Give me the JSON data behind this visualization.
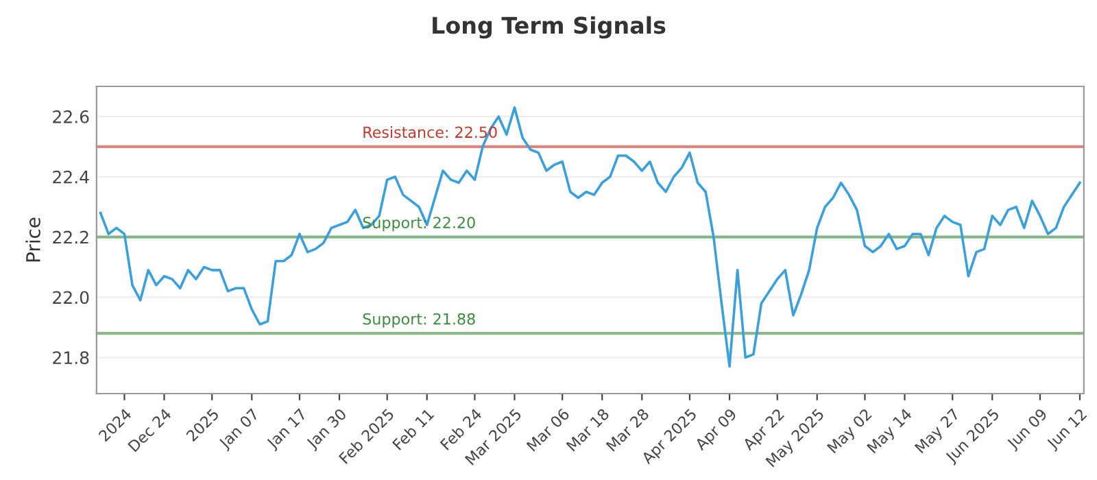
{
  "chart_data": {
    "type": "line",
    "title": "Long Term Signals",
    "ylabel": "Price",
    "categories": [
      null,
      null,
      null,
      "2024",
      null,
      null,
      null,
      null,
      "Dec 24",
      null,
      null,
      null,
      null,
      null,
      "2025",
      null,
      null,
      null,
      null,
      "Jan 07",
      null,
      null,
      null,
      null,
      null,
      "Jan 17",
      null,
      null,
      null,
      null,
      "Jan 30",
      null,
      null,
      null,
      null,
      null,
      "Feb 2025",
      null,
      null,
      null,
      null,
      "Feb 11",
      null,
      null,
      null,
      null,
      null,
      "Feb 24",
      null,
      null,
      null,
      null,
      "Mar 2025",
      null,
      null,
      null,
      null,
      null,
      "Mar 06",
      null,
      null,
      null,
      null,
      "Mar 18",
      null,
      null,
      null,
      null,
      "Mar 28",
      null,
      null,
      null,
      null,
      null,
      "Apr 2025",
      null,
      null,
      null,
      null,
      "Apr 09",
      null,
      null,
      null,
      null,
      null,
      "Apr 22",
      null,
      null,
      null,
      null,
      "May 2025",
      null,
      null,
      null,
      null,
      null,
      "May 02",
      null,
      null,
      null,
      null,
      "May 14",
      null,
      null,
      null,
      null,
      null,
      "May 27",
      null,
      null,
      null,
      null,
      "Jun 2025",
      null,
      null,
      null,
      null,
      null,
      "Jun 09",
      null,
      null,
      null,
      null,
      "Jun 12"
    ],
    "series": [
      {
        "color": "#3aa0dc",
        "values": [
          22.28,
          22.21,
          22.23,
          22.21,
          22.04,
          21.99,
          22.09,
          22.04,
          22.07,
          22.06,
          22.03,
          22.09,
          22.06,
          22.1,
          22.09,
          22.09,
          22.02,
          22.03,
          22.03,
          21.96,
          21.91,
          21.92,
          22.12,
          22.12,
          22.14,
          22.21,
          22.15,
          22.16,
          22.18,
          22.23,
          22.24,
          22.25,
          22.29,
          22.23,
          22.24,
          22.27,
          22.39,
          22.4,
          22.34,
          22.32,
          22.3,
          22.24,
          22.33,
          22.42,
          22.39,
          22.38,
          22.42,
          22.39,
          22.5,
          22.56,
          22.6,
          22.54,
          22.63,
          22.53,
          22.49,
          22.48,
          22.42,
          22.44,
          22.45,
          22.35,
          22.33,
          22.35,
          22.34,
          22.38,
          22.4,
          22.47,
          22.47,
          22.45,
          22.42,
          22.45,
          22.38,
          22.35,
          22.4,
          22.43,
          22.48,
          22.38,
          22.35,
          22.2,
          21.98,
          21.77,
          22.09,
          21.8,
          21.81,
          21.98,
          22.02,
          22.06,
          22.09,
          21.94,
          22.01,
          22.09,
          22.23,
          22.3,
          22.33,
          22.38,
          22.34,
          22.29,
          22.17,
          22.15,
          22.17,
          22.21,
          22.16,
          22.17,
          22.21,
          22.21,
          22.14,
          22.23,
          22.27,
          22.25,
          22.24,
          22.07,
          22.15,
          22.16,
          22.27,
          22.24,
          22.29,
          22.3,
          22.23,
          22.32,
          22.27,
          22.21,
          22.23,
          22.3,
          22.34,
          22.38
        ]
      }
    ],
    "ylim": [
      21.68,
      22.7
    ],
    "yticks": [
      21.8,
      {
        "value": 22.0,
        "label": "22.0"
      },
      22.2,
      22.4,
      22.6
    ],
    "grid": "y",
    "ref_lines": [
      {
        "axis": "y",
        "value": 22.5,
        "label": "Resistance: 22.50",
        "color": "#c0392b"
      },
      {
        "axis": "y",
        "value": 22.2,
        "label": "Support: 22.20",
        "color": "#3c8c3c"
      },
      {
        "axis": "y",
        "value": 21.88,
        "label": "Support: 21.88",
        "color": "#3c8c3c"
      }
    ]
  }
}
